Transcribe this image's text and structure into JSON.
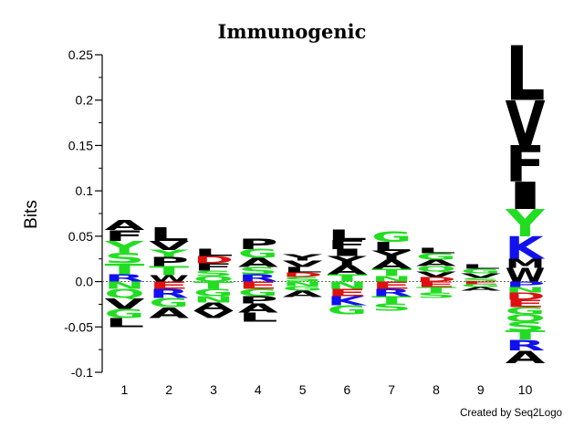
{
  "chart_data": {
    "type": "sequence-logo",
    "title": "Immunogenic",
    "ylabel": "Bits",
    "xlabel": "",
    "ylim": [
      -0.1,
      0.25
    ],
    "yticks": [
      "0.25",
      "0.2",
      "0.15",
      "0.1",
      "0.05",
      "0.0",
      "-0.05",
      "-0.1"
    ],
    "ytick_values": [
      0.25,
      0.2,
      0.15,
      0.1,
      0.05,
      0.0,
      -0.05,
      -0.1
    ],
    "positions": [
      "1",
      "2",
      "3",
      "4",
      "5",
      "6",
      "7",
      "8",
      "9",
      "10"
    ],
    "colors": {
      "black": "#000000",
      "green": "#22dd22",
      "blue": "#1111ee",
      "red": "#dd1111"
    },
    "columns": [
      {
        "position": "1",
        "positive": [
          {
            "letter": "R",
            "color": "blue",
            "height": 0.008
          },
          {
            "letter": "T",
            "color": "green",
            "height": 0.012
          },
          {
            "letter": "S",
            "color": "green",
            "height": 0.012
          },
          {
            "letter": "Y",
            "color": "green",
            "height": 0.013
          },
          {
            "letter": "F",
            "color": "black",
            "height": 0.012
          },
          {
            "letter": "A",
            "color": "black",
            "height": 0.011
          }
        ],
        "negative": [
          {
            "letter": "N",
            "color": "green",
            "height": 0.008
          },
          {
            "letter": "Q",
            "color": "green",
            "height": 0.01
          },
          {
            "letter": "V",
            "color": "black",
            "height": 0.012
          },
          {
            "letter": "G",
            "color": "green",
            "height": 0.01
          },
          {
            "letter": "L",
            "color": "black",
            "height": 0.01
          }
        ]
      },
      {
        "position": "2",
        "positive": [
          {
            "letter": "W",
            "color": "black",
            "height": 0.007
          },
          {
            "letter": "T",
            "color": "green",
            "height": 0.01
          },
          {
            "letter": "P",
            "color": "black",
            "height": 0.01
          },
          {
            "letter": "Y",
            "color": "green",
            "height": 0.008
          },
          {
            "letter": "V",
            "color": "black",
            "height": 0.01
          },
          {
            "letter": "L",
            "color": "black",
            "height": 0.015
          }
        ],
        "negative": [
          {
            "letter": "E",
            "color": "red",
            "height": 0.008
          },
          {
            "letter": "R",
            "color": "blue",
            "height": 0.01
          },
          {
            "letter": "G",
            "color": "green",
            "height": 0.01
          },
          {
            "letter": "A",
            "color": "black",
            "height": 0.012
          }
        ]
      },
      {
        "position": "3",
        "positive": [
          {
            "letter": "Q",
            "color": "green",
            "height": 0.006
          },
          {
            "letter": "S",
            "color": "green",
            "height": 0.006
          },
          {
            "letter": "F",
            "color": "black",
            "height": 0.008
          },
          {
            "letter": "D",
            "color": "red",
            "height": 0.008
          },
          {
            "letter": "L",
            "color": "black",
            "height": 0.008
          }
        ],
        "negative": [
          {
            "letter": "T",
            "color": "green",
            "height": 0.008
          },
          {
            "letter": "G",
            "color": "green",
            "height": 0.008
          },
          {
            "letter": "N",
            "color": "green",
            "height": 0.007
          },
          {
            "letter": "A",
            "color": "black",
            "height": 0.009
          },
          {
            "letter": "V",
            "color": "black",
            "height": 0.008
          }
        ]
      },
      {
        "position": "4",
        "positive": [
          {
            "letter": "R",
            "color": "blue",
            "height": 0.008
          },
          {
            "letter": "S",
            "color": "green",
            "height": 0.008
          },
          {
            "letter": "A",
            "color": "black",
            "height": 0.01
          },
          {
            "letter": "G",
            "color": "green",
            "height": 0.01
          },
          {
            "letter": "P",
            "color": "black",
            "height": 0.012
          }
        ],
        "negative": [
          {
            "letter": "E",
            "color": "red",
            "height": 0.008
          },
          {
            "letter": "G",
            "color": "green",
            "height": 0.008
          },
          {
            "letter": "P",
            "color": "black",
            "height": 0.008
          },
          {
            "letter": "A",
            "color": "black",
            "height": 0.01
          },
          {
            "letter": "L",
            "color": "black",
            "height": 0.01
          }
        ]
      },
      {
        "position": "5",
        "positive": [
          {
            "letter": "S",
            "color": "green",
            "height": 0.005
          },
          {
            "letter": "D",
            "color": "red",
            "height": 0.005
          },
          {
            "letter": "L",
            "color": "black",
            "height": 0.006
          },
          {
            "letter": "V",
            "color": "black",
            "height": 0.007
          },
          {
            "letter": "Y",
            "color": "black",
            "height": 0.007
          }
        ],
        "negative": [
          {
            "letter": "N",
            "color": "green",
            "height": 0.005
          },
          {
            "letter": "G",
            "color": "green",
            "height": 0.005
          },
          {
            "letter": "A",
            "color": "black",
            "height": 0.007
          }
        ]
      },
      {
        "position": "6",
        "positive": [
          {
            "letter": "T",
            "color": "green",
            "height": 0.008
          },
          {
            "letter": "A",
            "color": "black",
            "height": 0.01
          },
          {
            "letter": "Y",
            "color": "black",
            "height": 0.01
          },
          {
            "letter": "I",
            "color": "black",
            "height": 0.008
          },
          {
            "letter": "F",
            "color": "black",
            "height": 0.01
          },
          {
            "letter": "L",
            "color": "black",
            "height": 0.012
          }
        ],
        "negative": [
          {
            "letter": "N",
            "color": "green",
            "height": 0.008
          },
          {
            "letter": "E",
            "color": "red",
            "height": 0.008
          },
          {
            "letter": "K",
            "color": "blue",
            "height": 0.01
          },
          {
            "letter": "G",
            "color": "green",
            "height": 0.01
          }
        ]
      },
      {
        "position": "7",
        "positive": [
          {
            "letter": "N",
            "color": "green",
            "height": 0.006
          },
          {
            "letter": "T",
            "color": "green",
            "height": 0.008
          },
          {
            "letter": "A",
            "color": "black",
            "height": 0.01
          },
          {
            "letter": "Y",
            "color": "black",
            "height": 0.01
          },
          {
            "letter": "L",
            "color": "black",
            "height": 0.01
          },
          {
            "letter": "G",
            "color": "green",
            "height": 0.012
          }
        ],
        "negative": [
          {
            "letter": "E",
            "color": "red",
            "height": 0.008
          },
          {
            "letter": "R",
            "color": "blue",
            "height": 0.008
          },
          {
            "letter": "T",
            "color": "green",
            "height": 0.008
          },
          {
            "letter": "S",
            "color": "green",
            "height": 0.008
          }
        ]
      },
      {
        "position": "8",
        "positive": [
          {
            "letter": "D",
            "color": "red",
            "height": 0.005
          },
          {
            "letter": "V",
            "color": "black",
            "height": 0.006
          },
          {
            "letter": "Q",
            "color": "green",
            "height": 0.006
          },
          {
            "letter": "A",
            "color": "black",
            "height": 0.007
          },
          {
            "letter": "G",
            "color": "green",
            "height": 0.007
          },
          {
            "letter": "L",
            "color": "black",
            "height": 0.006
          }
        ],
        "negative": [
          {
            "letter": "E",
            "color": "red",
            "height": 0.006
          },
          {
            "letter": "T",
            "color": "green",
            "height": 0.006
          },
          {
            "letter": "S",
            "color": "green",
            "height": 0.006
          }
        ]
      },
      {
        "position": "9",
        "positive": [
          {
            "letter": "S",
            "color": "green",
            "height": 0.004
          },
          {
            "letter": "V",
            "color": "black",
            "height": 0.005
          },
          {
            "letter": "G",
            "color": "green",
            "height": 0.005
          },
          {
            "letter": "L",
            "color": "black",
            "height": 0.005
          }
        ],
        "negative": [
          {
            "letter": "E",
            "color": "red",
            "height": 0.003
          },
          {
            "letter": "G",
            "color": "green",
            "height": 0.003
          },
          {
            "letter": "A",
            "color": "black",
            "height": 0.004
          }
        ]
      },
      {
        "position": "10",
        "positive": [
          {
            "letter": "W",
            "color": "black",
            "height": 0.015
          },
          {
            "letter": "M",
            "color": "black",
            "height": 0.01
          },
          {
            "letter": "K",
            "color": "blue",
            "height": 0.025
          },
          {
            "letter": "Y",
            "color": "green",
            "height": 0.03
          },
          {
            "letter": "I",
            "color": "black",
            "height": 0.03
          },
          {
            "letter": "F",
            "color": "black",
            "height": 0.04
          },
          {
            "letter": "V",
            "color": "black",
            "height": 0.05
          },
          {
            "letter": "L",
            "color": "black",
            "height": 0.06
          }
        ],
        "negative": [
          {
            "letter": "P",
            "color": "blue",
            "height": 0.006
          },
          {
            "letter": "N",
            "color": "green",
            "height": 0.006
          },
          {
            "letter": "D",
            "color": "red",
            "height": 0.008
          },
          {
            "letter": "E",
            "color": "red",
            "height": 0.008
          },
          {
            "letter": "G",
            "color": "green",
            "height": 0.008
          },
          {
            "letter": "Q",
            "color": "green",
            "height": 0.008
          },
          {
            "letter": "S",
            "color": "green",
            "height": 0.01
          },
          {
            "letter": "T",
            "color": "green",
            "height": 0.01
          },
          {
            "letter": "R",
            "color": "blue",
            "height": 0.012
          },
          {
            "letter": "A",
            "color": "black",
            "height": 0.014
          }
        ]
      }
    ]
  },
  "footer": {
    "credit": "Created by Seq2Logo"
  }
}
